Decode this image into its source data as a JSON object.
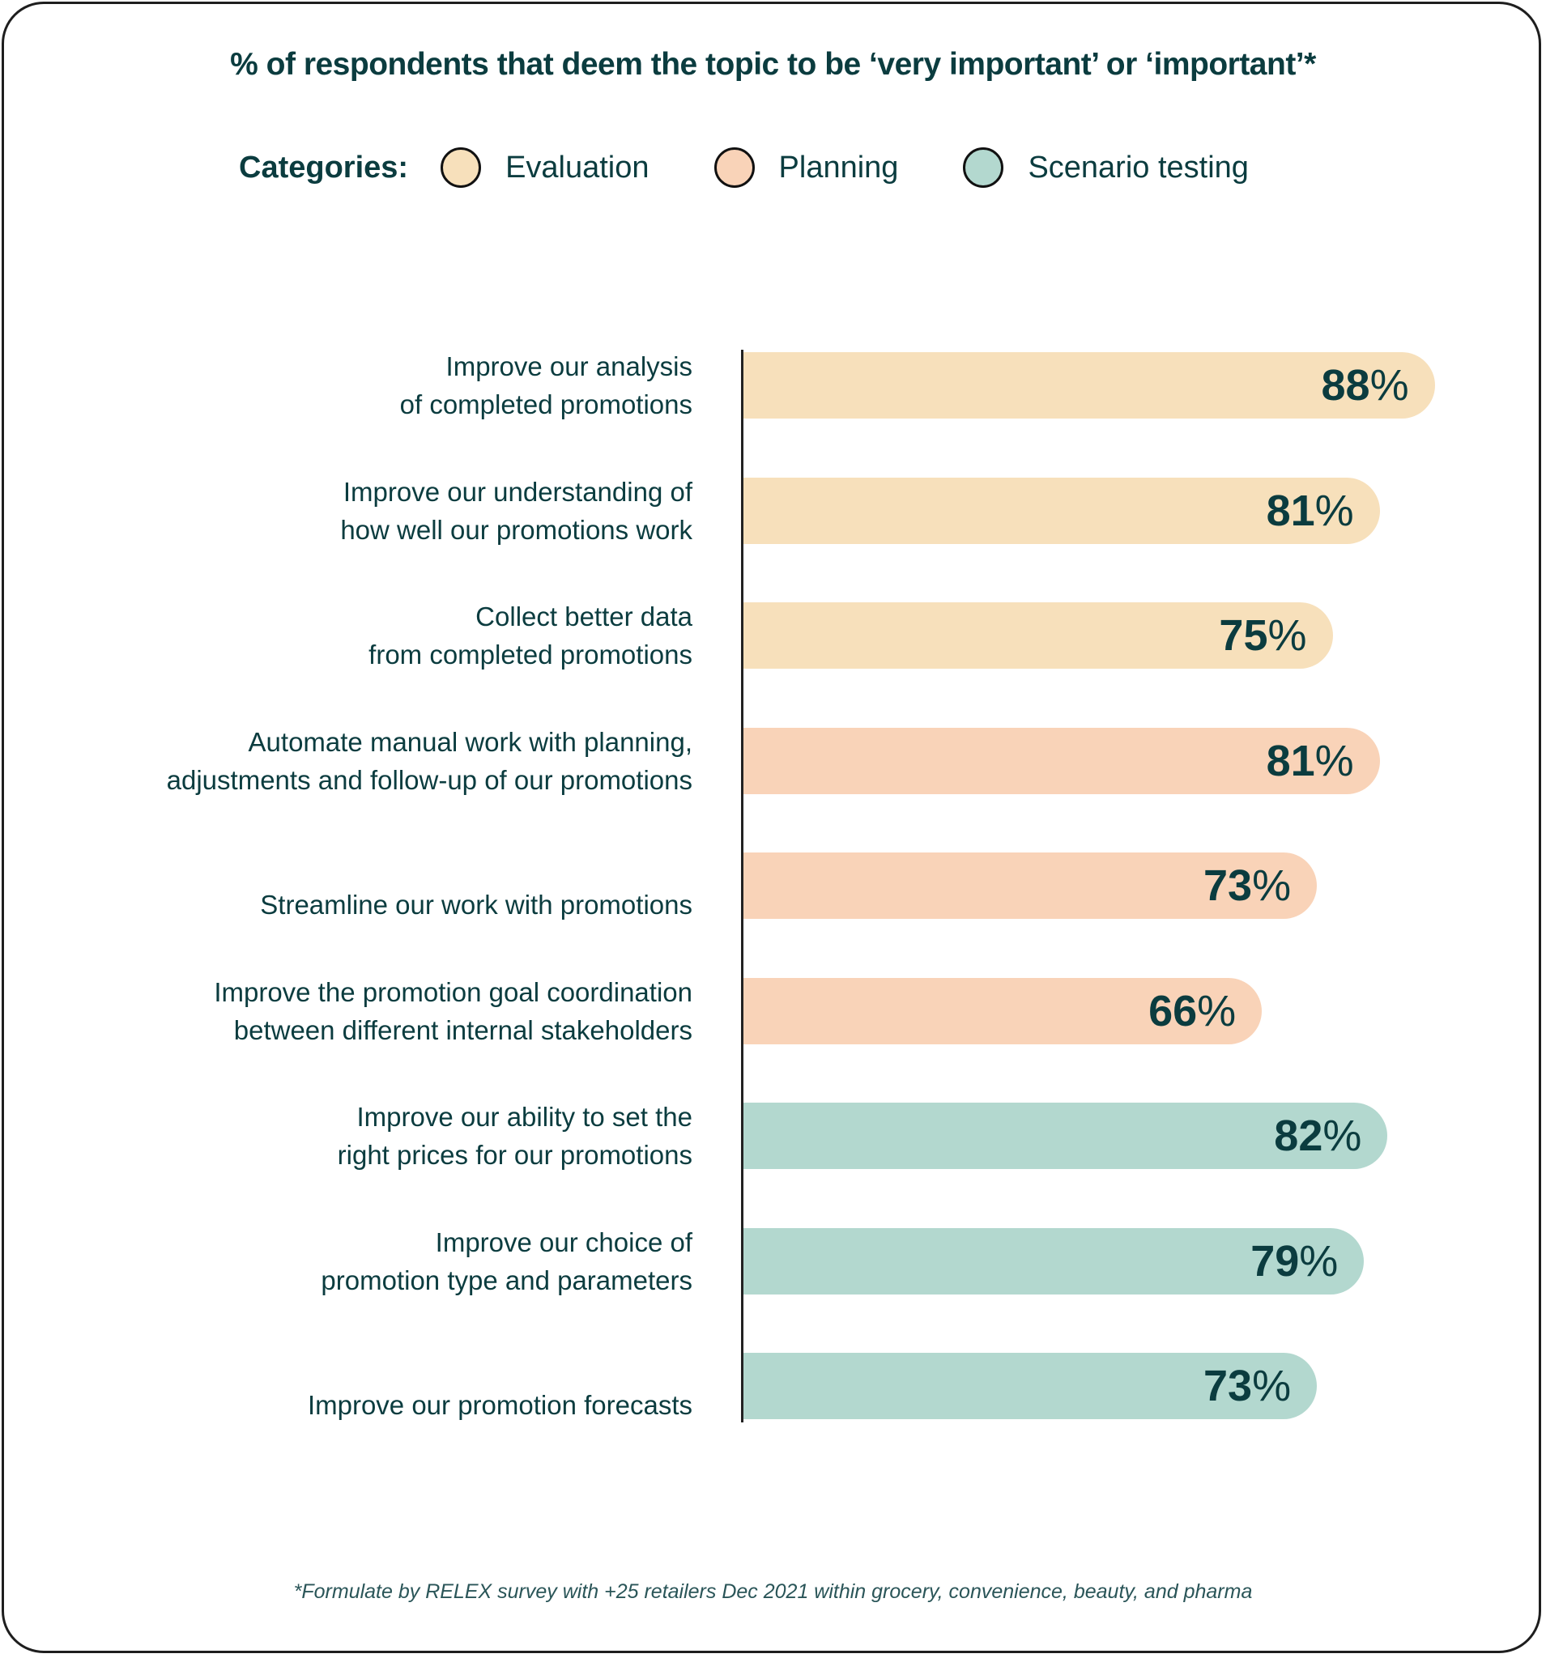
{
  "chart_data": {
    "type": "bar",
    "orientation": "horizontal",
    "title": "% of respondents that deem the topic to be ‘very important’ or ‘important’*",
    "legend": {
      "label": "Categories:",
      "placement": "top",
      "entries": [
        {
          "name": "Evaluation",
          "color": "#f7e0bb"
        },
        {
          "name": "Planning",
          "color": "#f9d3b8"
        },
        {
          "name": "Scenario testing",
          "color": "#b3d8cf"
        }
      ]
    },
    "xlim": [
      0,
      100
    ],
    "grid": false,
    "unit": "%",
    "rows": [
      {
        "label": [
          "Improve our analysis",
          "of completed promotions"
        ],
        "value": 88,
        "category": "Evaluation"
      },
      {
        "label": [
          "Improve our understanding of",
          "how well our promotions work"
        ],
        "value": 81,
        "category": "Evaluation"
      },
      {
        "label": [
          "Collect better data",
          "from completed promotions"
        ],
        "value": 75,
        "category": "Evaluation"
      },
      {
        "label": [
          "Automate manual work with planning,",
          "adjustments and follow-up of our promotions"
        ],
        "value": 81,
        "category": "Planning"
      },
      {
        "label": [
          "Streamline our work with promotions"
        ],
        "value": 73,
        "category": "Planning"
      },
      {
        "label": [
          "Improve the promotion goal coordination",
          "between different internal stakeholders"
        ],
        "value": 66,
        "category": "Planning"
      },
      {
        "label": [
          "Improve our ability to set the",
          "right prices for our promotions"
        ],
        "value": 82,
        "category": "Scenario testing"
      },
      {
        "label": [
          "Improve our choice of",
          "promotion type and parameters"
        ],
        "value": 79,
        "category": "Scenario testing"
      },
      {
        "label": [
          "Improve our promotion forecasts"
        ],
        "value": 73,
        "category": "Scenario testing"
      }
    ],
    "footnote": "*Formulate by RELEX survey with +25 retailers Dec 2021 within grocery, convenience, beauty, and pharma"
  }
}
